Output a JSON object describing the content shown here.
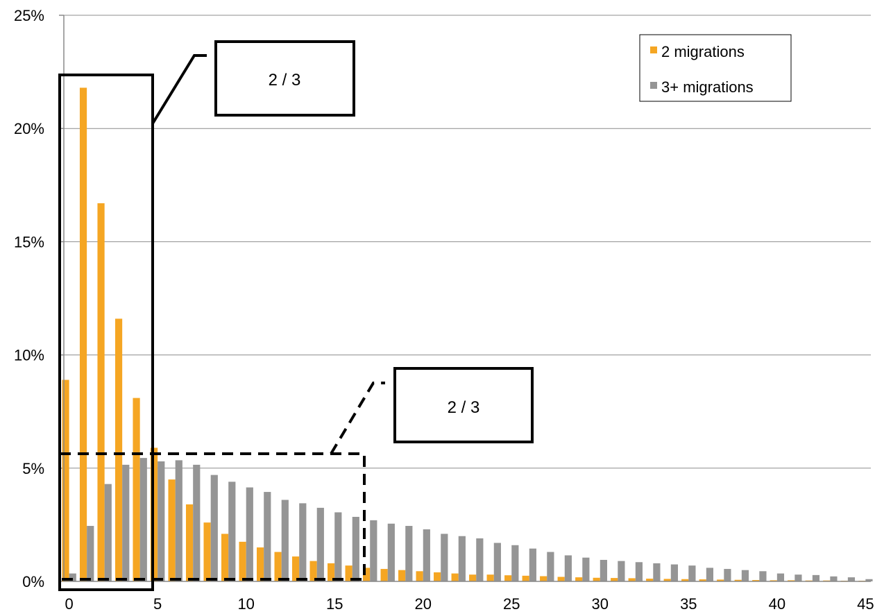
{
  "chart_data": {
    "type": "bar",
    "x": [
      0,
      1,
      2,
      3,
      4,
      5,
      6,
      7,
      8,
      9,
      10,
      11,
      12,
      13,
      14,
      15,
      16,
      17,
      18,
      19,
      20,
      21,
      22,
      23,
      24,
      25,
      26,
      27,
      28,
      29,
      30,
      31,
      32,
      33,
      34,
      35,
      36,
      37,
      38,
      39,
      40,
      41,
      42,
      43,
      44,
      45
    ],
    "series": [
      {
        "name": "2 migrations",
        "color": "#f5a623",
        "values": [
          8.9,
          21.8,
          16.7,
          11.6,
          8.1,
          5.9,
          4.5,
          3.4,
          2.6,
          2.1,
          1.75,
          1.5,
          1.3,
          1.1,
          0.9,
          0.8,
          0.7,
          0.6,
          0.55,
          0.5,
          0.45,
          0.4,
          0.35,
          0.3,
          0.3,
          0.27,
          0.25,
          0.23,
          0.2,
          0.18,
          0.16,
          0.15,
          0.14,
          0.12,
          0.11,
          0.1,
          0.09,
          0.08,
          0.07,
          0.06,
          0.05,
          0.05,
          0.04,
          0.04,
          0.03,
          0.03
        ]
      },
      {
        "name": "3+ migrations",
        "color": "#959595",
        "values": [
          0.35,
          2.45,
          4.3,
          5.15,
          5.45,
          5.3,
          5.35,
          5.15,
          4.7,
          4.4,
          4.15,
          3.95,
          3.6,
          3.45,
          3.25,
          3.05,
          2.85,
          2.7,
          2.55,
          2.45,
          2.3,
          2.1,
          2.0,
          1.9,
          1.7,
          1.6,
          1.45,
          1.3,
          1.15,
          1.05,
          0.95,
          0.9,
          0.85,
          0.8,
          0.75,
          0.7,
          0.6,
          0.55,
          0.5,
          0.45,
          0.35,
          0.3,
          0.28,
          0.22,
          0.18,
          0.1
        ]
      }
    ],
    "yticks": [
      "0%",
      "5%",
      "10%",
      "15%",
      "20%",
      "25%"
    ],
    "xticks": [
      "0",
      "5",
      "10",
      "15",
      "20",
      "25",
      "30",
      "35",
      "40",
      "45"
    ],
    "ylim": [
      0,
      25
    ],
    "grid": true,
    "legend_position": "top-right",
    "annotations": [
      {
        "label": "2 / 3",
        "style": "solid",
        "x_from": -0.5,
        "x_to": 4.5,
        "y_from": 0,
        "y_to": 22.3
      },
      {
        "label": "2 / 3",
        "style": "dashed",
        "x_from": -0.5,
        "x_to": 16.5,
        "y_from": 0.1,
        "y_to": 5.6
      }
    ]
  }
}
